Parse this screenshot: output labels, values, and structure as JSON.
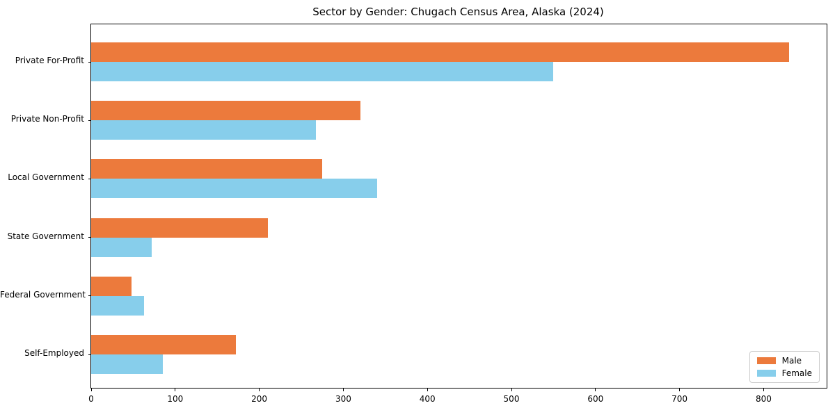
{
  "chart_data": {
    "type": "bar",
    "orientation": "horizontal",
    "title": "Sector by Gender: Chugach Census Area, Alaska (2024)",
    "categories": [
      "Private For-Profit",
      "Private Non-Profit",
      "Local Government",
      "State Government",
      "Federal Government",
      "Self-Employed"
    ],
    "series": [
      {
        "name": "Male",
        "color": "#EC7A3C",
        "values": [
          830,
          320,
          275,
          210,
          48,
          172
        ]
      },
      {
        "name": "Female",
        "color": "#87CEEB",
        "values": [
          550,
          267,
          340,
          72,
          63,
          85
        ]
      }
    ],
    "xlabel": "",
    "ylabel": "",
    "xlim": [
      0,
      875
    ],
    "x_ticks": [
      0,
      100,
      200,
      300,
      400,
      500,
      600,
      700,
      800
    ],
    "grid": false,
    "legend": {
      "position": "lower right"
    }
  },
  "colors": {
    "male": "#EC7A3C",
    "female": "#87CEEB",
    "spine": "#000000",
    "legend_border": "#cccccc",
    "background": "#ffffff"
  }
}
